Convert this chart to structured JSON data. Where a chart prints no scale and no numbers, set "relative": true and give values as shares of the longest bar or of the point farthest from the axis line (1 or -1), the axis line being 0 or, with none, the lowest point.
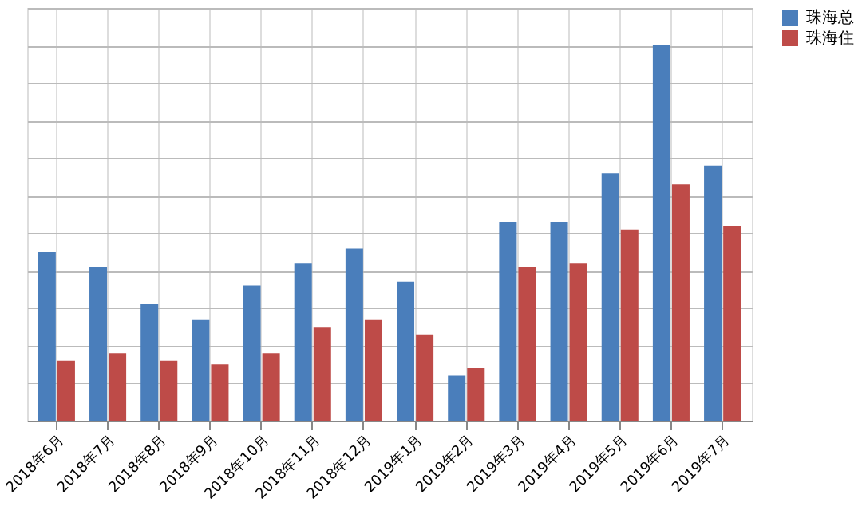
{
  "chart_data": {
    "type": "bar",
    "relative": true,
    "grid": true,
    "legend": "right",
    "categories": [
      "2018年6月",
      "2018年7月",
      "2018年8月",
      "2018年9月",
      "2018年10月",
      "2018年11月",
      "2018年12月",
      "2019年1月",
      "2019年2月",
      "2019年3月",
      "2019年4月",
      "2019年5月",
      "2019年6月",
      "2019年7月"
    ],
    "series": [
      {
        "name": "珠海总",
        "color": "#4a7ebb",
        "values": [
          0.45,
          0.41,
          0.31,
          0.27,
          0.36,
          0.42,
          0.46,
          0.37,
          0.12,
          0.53,
          0.53,
          0.66,
          1.0,
          0.68
        ]
      },
      {
        "name": "珠海住",
        "color": "#be4b48",
        "values": [
          0.16,
          0.18,
          0.16,
          0.15,
          0.18,
          0.25,
          0.27,
          0.23,
          0.14,
          0.41,
          0.42,
          0.51,
          0.63,
          0.52
        ]
      }
    ]
  }
}
